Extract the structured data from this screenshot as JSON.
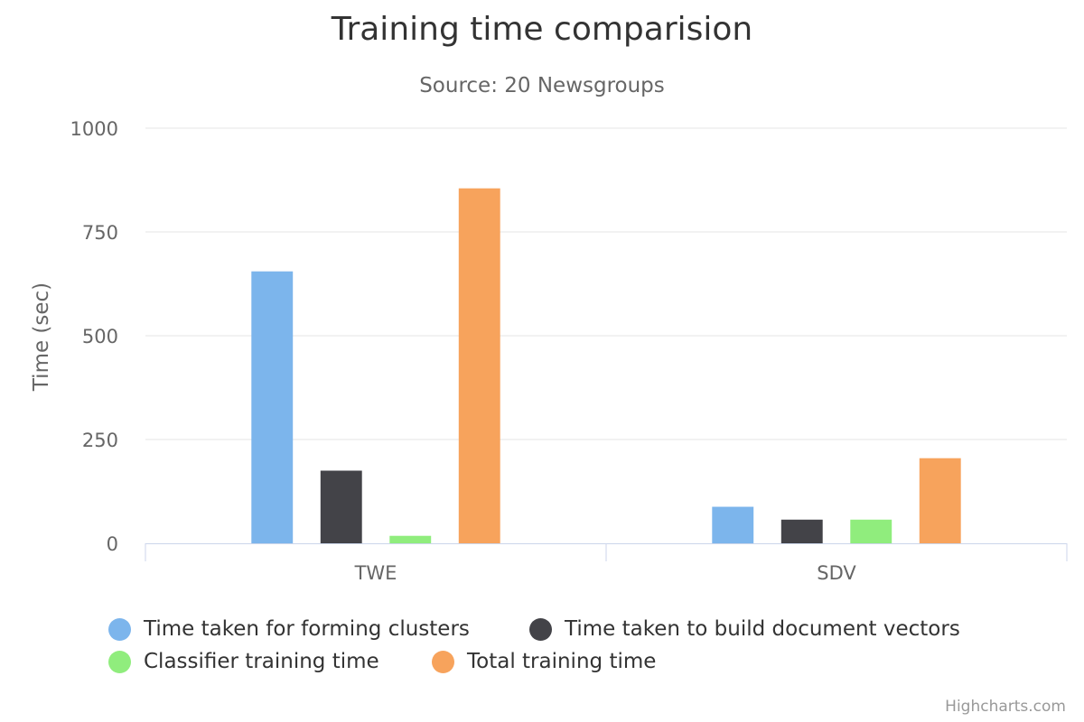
{
  "chart_data": {
    "type": "bar",
    "title": "Training time comparision",
    "subtitle": "Source: 20 Newsgroups",
    "xlabel": "",
    "ylabel": "Time (sec)",
    "categories": [
      "TWE",
      "SDV"
    ],
    "ylim": [
      0,
      1000
    ],
    "yticks": [
      0,
      250,
      500,
      750,
      1000
    ],
    "grid": true,
    "legend_position": "bottom",
    "series": [
      {
        "name": "Time taken for forming clusters",
        "color": "#7cb5ec",
        "values": [
          655,
          88
        ]
      },
      {
        "name": "Time taken to build document vectors",
        "color": "#434348",
        "values": [
          175,
          57
        ]
      },
      {
        "name": "Classifier training time",
        "color": "#90ed7d",
        "values": [
          18,
          57
        ]
      },
      {
        "name": "Total training time",
        "color": "#f7a35c",
        "values": [
          855,
          205
        ]
      }
    ]
  },
  "credits": "Highcharts.com"
}
